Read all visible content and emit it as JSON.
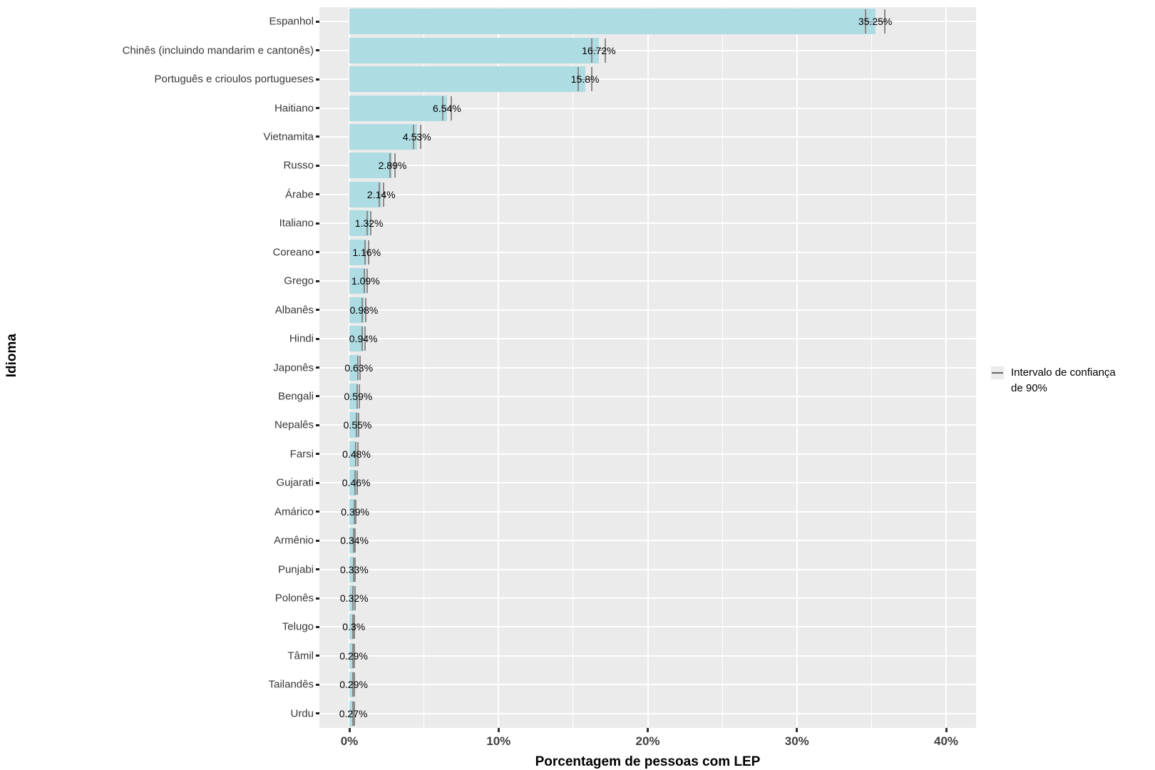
{
  "chart_data": {
    "type": "bar",
    "orientation": "horizontal",
    "xlabel": "Porcentagem de pessoas com LEP",
    "ylabel": "Idioma",
    "categories": [
      "Espanhol",
      "Chinês (incluindo mandarim e cantonês)",
      "Português e crioulos portugueses",
      "Haitiano",
      "Vietnamita",
      "Russo",
      "Árabe",
      "Italiano",
      "Coreano",
      "Grego",
      "Albanês",
      "Hindi",
      "Japonês",
      "Bengali",
      "Nepalês",
      "Farsi",
      "Gujarati",
      "Amárico",
      "Armênio",
      "Punjabi",
      "Polonês",
      "Telugo",
      "Tâmil",
      "Tailandês",
      "Urdu"
    ],
    "values": [
      35.25,
      16.72,
      15.8,
      6.54,
      4.53,
      2.89,
      2.14,
      1.32,
      1.16,
      1.09,
      0.98,
      0.94,
      0.63,
      0.59,
      0.55,
      0.48,
      0.46,
      0.39,
      0.34,
      0.33,
      0.32,
      0.3,
      0.29,
      0.29,
      0.27
    ],
    "value_labels": [
      "35.25%",
      "16.72%",
      "15.8%",
      "6.54%",
      "4.53%",
      "2.89%",
      "2.14%",
      "1.32%",
      "1.16%",
      "1.09%",
      "0.98%",
      "0.94%",
      "0.63%",
      "0.59%",
      "0.55%",
      "0.48%",
      "0.46%",
      "0.39%",
      "0.34%",
      "0.33%",
      "0.32%",
      "0.3%",
      "0.29%",
      "0.29%",
      "0.27%"
    ],
    "ci_low": [
      34.6,
      16.27,
      15.35,
      6.24,
      4.28,
      2.71,
      1.99,
      1.2,
      1.05,
      0.98,
      0.88,
      0.84,
      0.55,
      0.51,
      0.47,
      0.41,
      0.39,
      0.33,
      0.28,
      0.27,
      0.26,
      0.25,
      0.24,
      0.24,
      0.22
    ],
    "ci_high": [
      35.9,
      17.17,
      16.25,
      6.84,
      4.78,
      3.07,
      2.29,
      1.44,
      1.27,
      1.2,
      1.08,
      1.04,
      0.71,
      0.67,
      0.63,
      0.55,
      0.53,
      0.45,
      0.4,
      0.39,
      0.38,
      0.35,
      0.34,
      0.34,
      0.32
    ],
    "x_ticks": [
      0,
      10,
      20,
      30,
      40
    ],
    "x_tick_labels": [
      "0%",
      "10%",
      "20%",
      "30%",
      "40%"
    ],
    "x_minor_ticks": [
      5,
      15,
      25,
      35
    ],
    "xlim": [
      -2,
      42
    ],
    "grid": true,
    "legend": {
      "position": "right",
      "label_line1": "Intervalo de confiança",
      "label_line2": "de 90%"
    },
    "colors": {
      "bar": "#AEDCE3",
      "panel_background": "#EBEBEB",
      "gridline": "#FFFFFF",
      "errorbar": "#8A8A8A",
      "axis_text": "#383838",
      "tick_label": "#404040",
      "value_label": "#000000"
    }
  }
}
